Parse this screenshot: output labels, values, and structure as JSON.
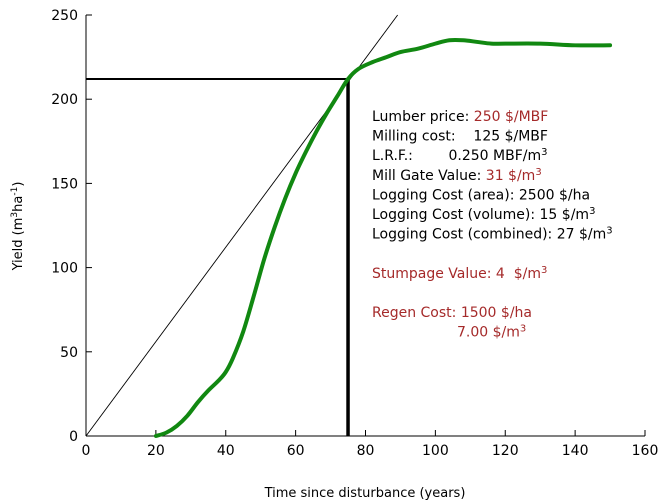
{
  "chart_data": {
    "type": "line",
    "xlabel": "Time since disturbance (years)",
    "ylabel_parts": [
      "Yield (m",
      "3",
      "ha",
      "-1",
      ")"
    ],
    "xlim": [
      0,
      160
    ],
    "ylim": [
      0,
      250
    ],
    "xticks": [
      "0",
      "20",
      "40",
      "60",
      "80",
      "100",
      "120",
      "140",
      "160"
    ],
    "yticks": [
      "0",
      "50",
      "100",
      "150",
      "200",
      "250"
    ],
    "grid": false,
    "series": [
      {
        "color": "#118811",
        "x": [
          20,
          23,
          26,
          29,
          32,
          35,
          38,
          40,
          42,
          45,
          48,
          51,
          54,
          57,
          60,
          63,
          66,
          69,
          72,
          75,
          78,
          82,
          86,
          90,
          95,
          100,
          104,
          108,
          112,
          116,
          120,
          130,
          140,
          150
        ],
        "y": [
          0,
          2,
          6,
          12,
          20,
          27,
          33,
          38,
          46,
          62,
          83,
          105,
          124,
          141,
          156,
          169,
          181,
          192,
          202,
          212,
          218,
          222,
          225,
          228,
          230,
          233,
          235,
          235,
          234,
          233,
          233,
          233,
          232,
          232
        ]
      }
    ],
    "tangent_line": {
      "color": "#000000",
      "x": [
        0,
        89.2
      ],
      "y": [
        0,
        250
      ]
    },
    "reference_point": {
      "x": 75,
      "y": 212
    },
    "annotations": [
      {
        "row": 0,
        "parts": [
          {
            "text": "Lumber price: ",
            "color": "#000000"
          },
          {
            "text": "250 $/MBF",
            "color": "#a52a2a"
          }
        ]
      },
      {
        "row": 1,
        "parts": [
          {
            "text": "Milling cost:    125 $/MBF",
            "color": "#000000"
          }
        ]
      },
      {
        "row": 2,
        "parts": [
          {
            "text": "L.R.F.:        0.250 MBF/m",
            "color": "#000000"
          },
          {
            "text": "3",
            "color": "#000000",
            "sup": true
          }
        ]
      },
      {
        "row": 3,
        "parts": [
          {
            "text": "Mill Gate Value: ",
            "color": "#000000"
          },
          {
            "text": "31 $/m",
            "color": "#a52a2a"
          },
          {
            "text": "3",
            "color": "#a52a2a",
            "sup": true
          }
        ]
      },
      {
        "row": 4,
        "parts": [
          {
            "text": "Logging Cost (area): 2500 $/ha",
            "color": "#000000"
          }
        ]
      },
      {
        "row": 5,
        "parts": [
          {
            "text": "Logging Cost (volume): 15 $/m",
            "color": "#000000"
          },
          {
            "text": "3",
            "color": "#000000",
            "sup": true
          }
        ]
      },
      {
        "row": 6,
        "parts": [
          {
            "text": "Logging Cost (combined): 27 $/m",
            "color": "#000000"
          },
          {
            "text": "3",
            "color": "#000000",
            "sup": true
          }
        ]
      },
      {
        "row": 8,
        "parts": [
          {
            "text": "Stumpage Value: 4  $/m",
            "color": "#a52a2a"
          },
          {
            "text": "3",
            "color": "#a52a2a",
            "sup": true
          }
        ]
      },
      {
        "row": 10,
        "parts": [
          {
            "text": "Regen Cost: 1500 $/ha",
            "color": "#a52a2a"
          }
        ]
      },
      {
        "row": 11,
        "indent": true,
        "parts": [
          {
            "text": "7.00 $/m",
            "color": "#a52a2a"
          },
          {
            "text": "3",
            "color": "#a52a2a",
            "sup": true
          }
        ]
      }
    ]
  }
}
